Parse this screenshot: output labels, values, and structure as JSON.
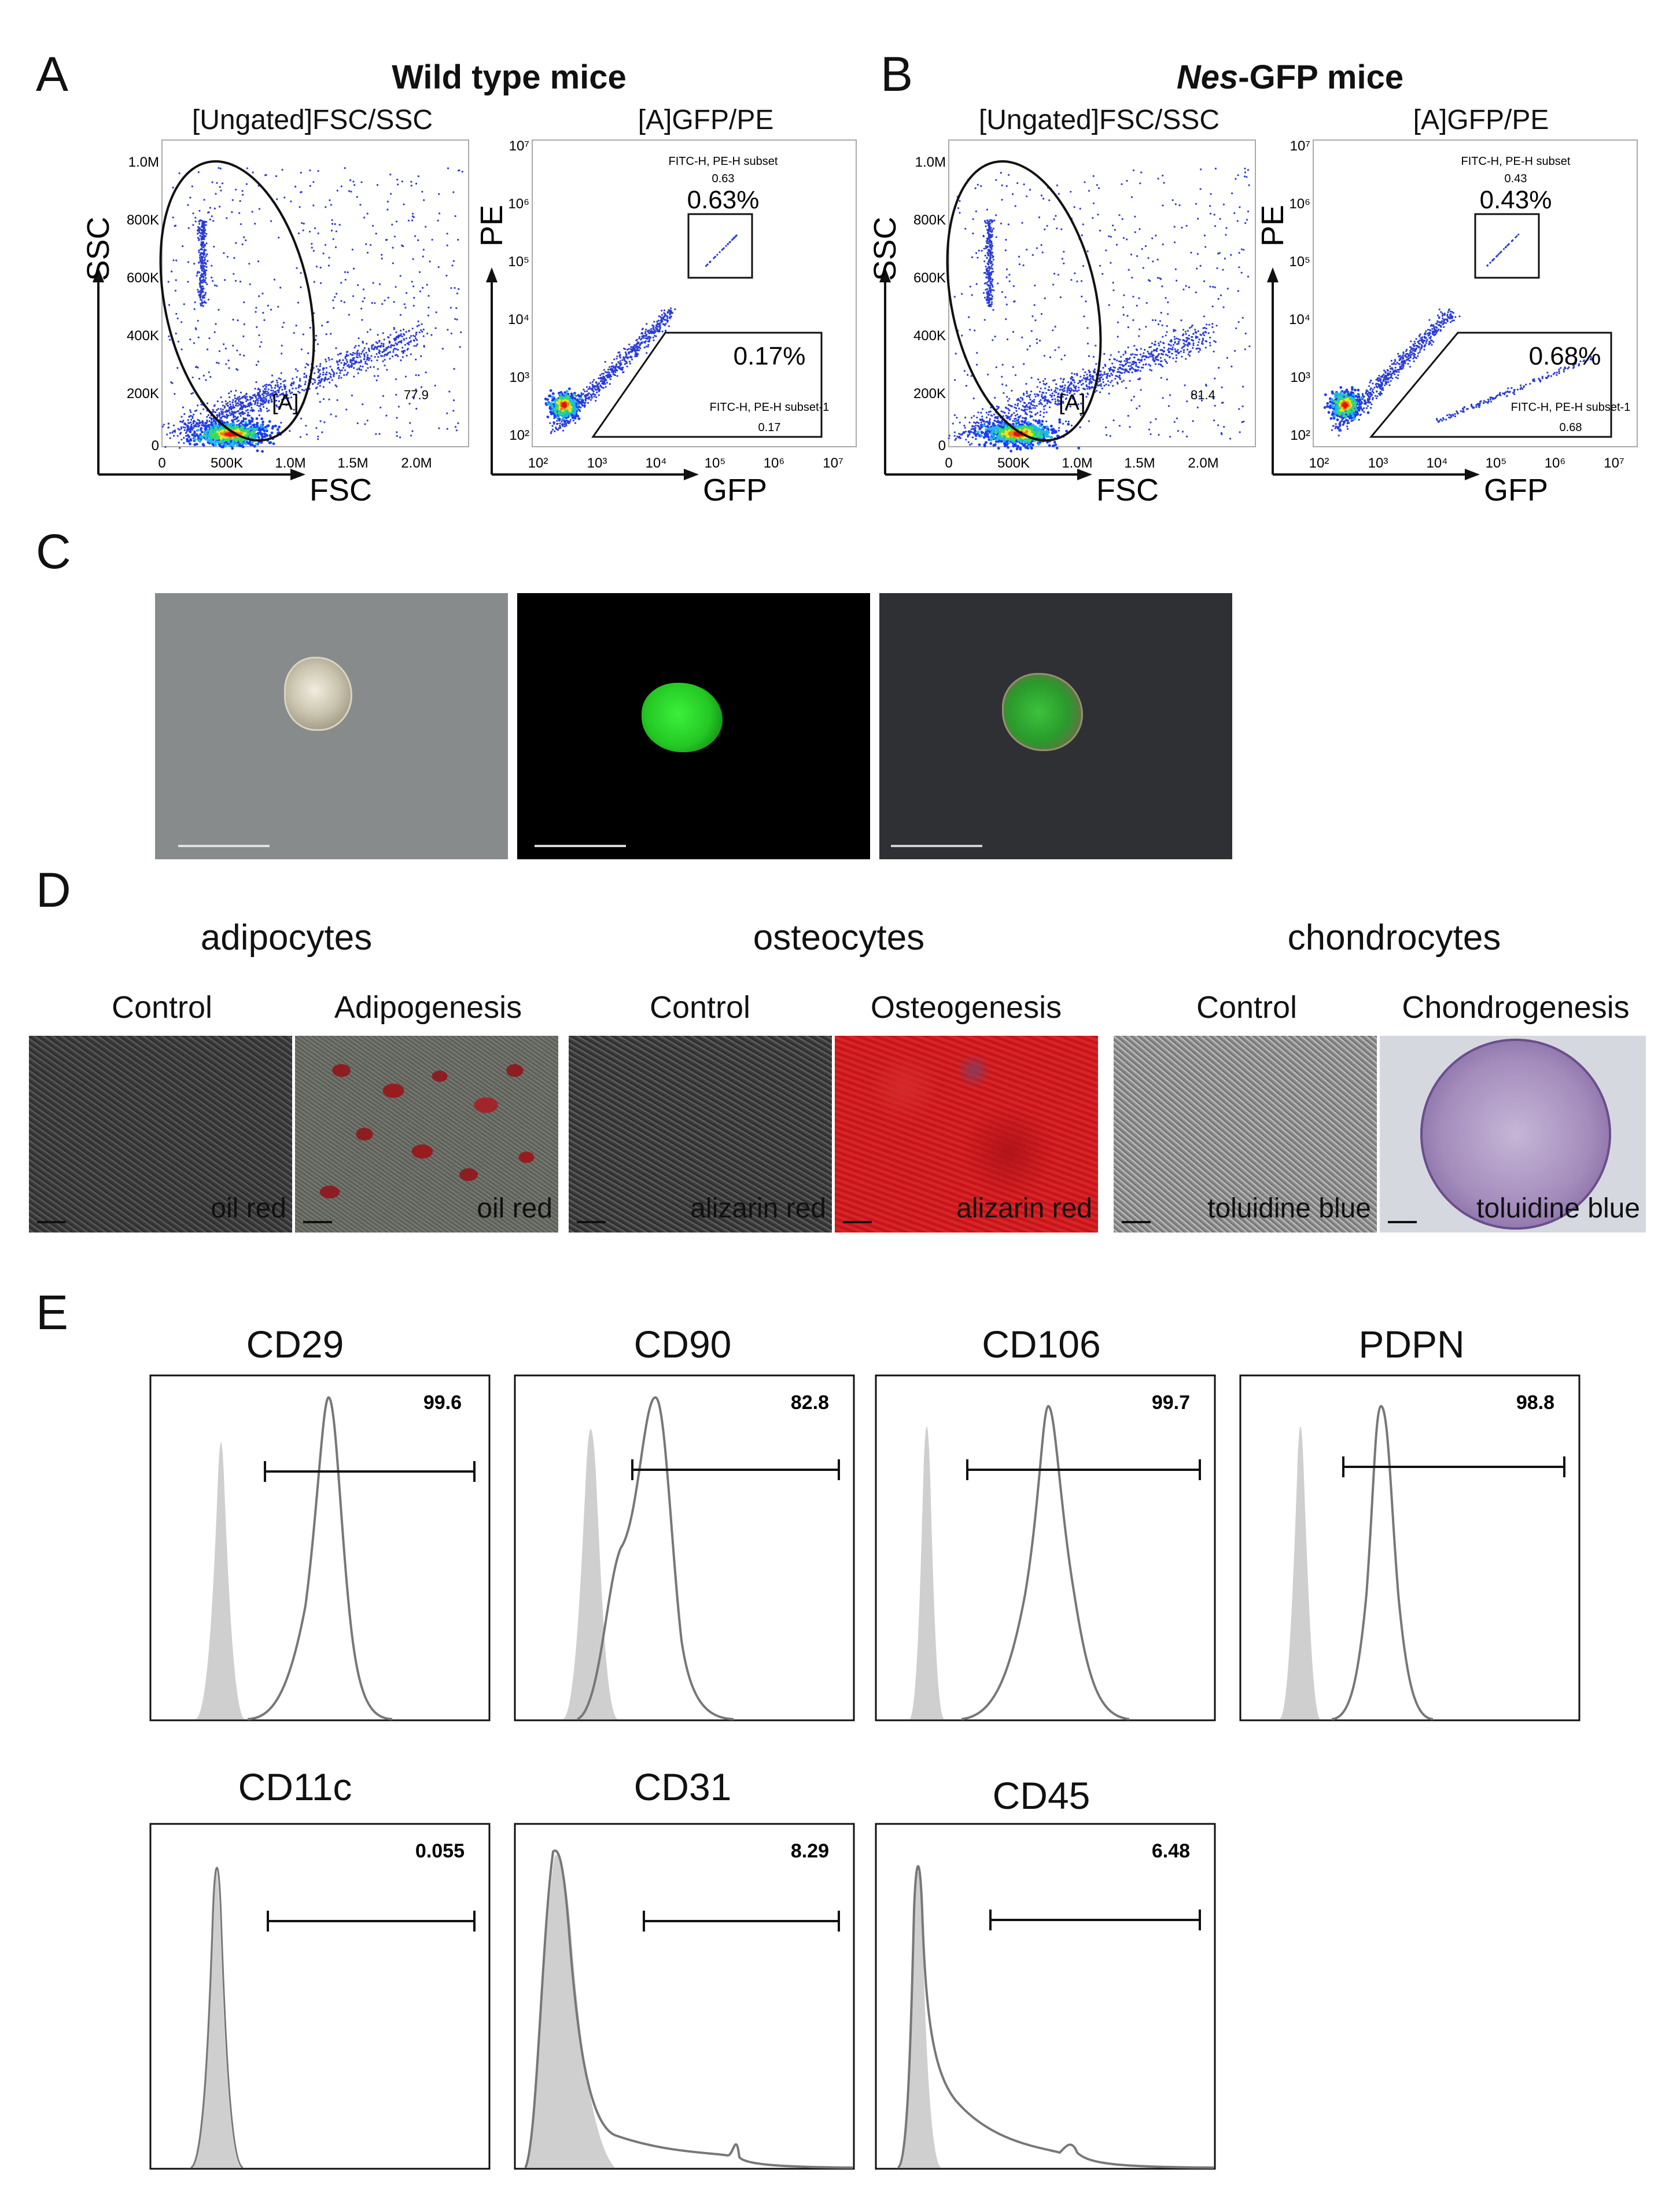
{
  "panel_a": {
    "letter": "A",
    "title": "Wild type mice",
    "plot1": {
      "title": "[Ungated]FSC/SSC",
      "xlabel": "FSC",
      "ylabel": "SSC",
      "gate_label": "[A]",
      "gate_value": "77.9",
      "xticks": [
        "0",
        "500K",
        "1.0M",
        "1.5M",
        "2.0M"
      ],
      "yticks": [
        "0",
        "200K",
        "400K",
        "600K",
        "800K",
        "1.0M"
      ]
    },
    "plot2": {
      "title": "[A]GFP/PE",
      "xlabel": "GFP",
      "ylabel": "PE",
      "upper_subset": "FITC-H, PE-H subset",
      "upper_small": "0.63",
      "upper_pct": "0.63%",
      "lower_pct": "0.17%",
      "lower_subset": "FITC-H, PE-H subset-1",
      "lower_small": "0.17",
      "ticks": [
        "10²",
        "10³",
        "10⁴",
        "10⁵",
        "10⁶",
        "10⁷"
      ]
    }
  },
  "panel_b": {
    "letter": "B",
    "title_italic": "Nes",
    "title_rest": "-GFP mice",
    "plot1": {
      "title": "[Ungated]FSC/SSC",
      "xlabel": "FSC",
      "ylabel": "SSC",
      "gate_label": "[A]",
      "gate_value": "81.4",
      "xticks": [
        "0",
        "500K",
        "1.0M",
        "1.5M",
        "2.0M"
      ],
      "yticks": [
        "0",
        "200K",
        "400K",
        "600K",
        "800K",
        "1.0M"
      ]
    },
    "plot2": {
      "title": "[A]GFP/PE",
      "xlabel": "GFP",
      "ylabel": "PE",
      "upper_subset": "FITC-H, PE-H subset",
      "upper_small": "0.43",
      "upper_pct": "0.43%",
      "lower_pct": "0.68%",
      "lower_subset": "FITC-H, PE-H subset-1",
      "lower_small": "0.68",
      "ticks": [
        "10²",
        "10³",
        "10⁴",
        "10⁵",
        "10⁶",
        "10⁷"
      ]
    }
  },
  "panel_c": {
    "letter": "C"
  },
  "panel_d": {
    "letter": "D",
    "groups": [
      {
        "title": "adipocytes",
        "left": "Control",
        "right": "Adipogenesis",
        "left_stain": "oil red",
        "right_stain": "oil red"
      },
      {
        "title": "osteocytes",
        "left": "Control",
        "right": "Osteogenesis",
        "left_stain": "alizarin red",
        "right_stain": "alizarin red"
      },
      {
        "title": "chondrocytes",
        "left": "Control",
        "right": "Chondrogenesis",
        "left_stain": "toluidine blue",
        "right_stain": "toluidine blue"
      }
    ]
  },
  "panel_e": {
    "letter": "E",
    "histograms": [
      {
        "marker": "CD29",
        "value": "99.6"
      },
      {
        "marker": "CD90",
        "value": "82.8"
      },
      {
        "marker": "CD106",
        "value": "99.7"
      },
      {
        "marker": "PDPN",
        "value": "98.8"
      },
      {
        "marker": "CD11c",
        "value": "0.055"
      },
      {
        "marker": "CD31",
        "value": "8.29"
      },
      {
        "marker": "CD45",
        "value": "6.48"
      }
    ]
  },
  "colors": {
    "dots": "#2a3cd6",
    "gfp": "#2cc42c",
    "alizarin": "#c8141c",
    "toluidine": "#8a70a8",
    "isotype_fill": "#cfcfcf"
  }
}
